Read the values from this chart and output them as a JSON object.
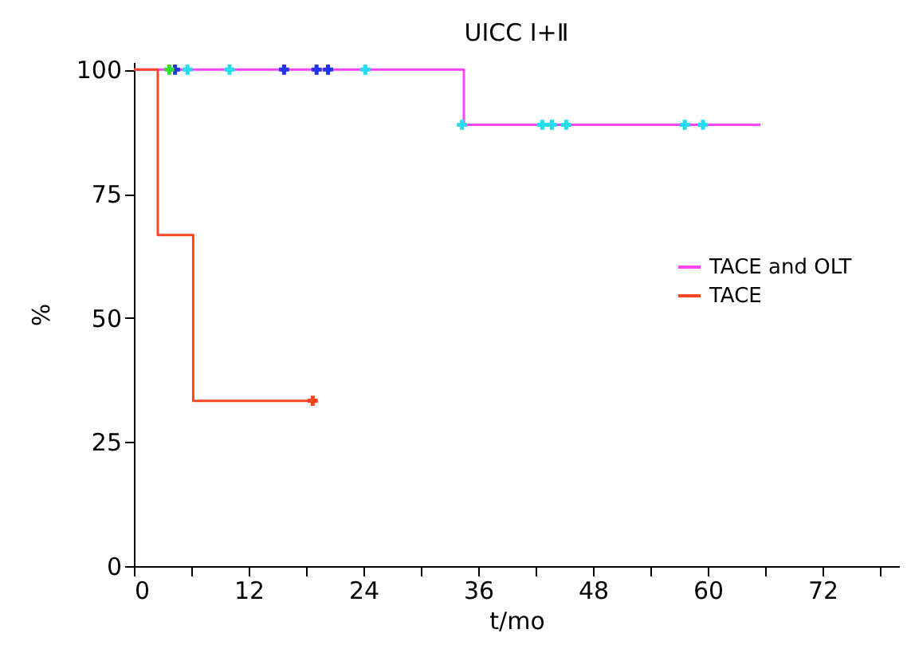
{
  "chart_data": {
    "type": "step",
    "title": "UICC Ⅰ+Ⅱ",
    "xlabel": "t/mo",
    "ylabel": "%",
    "xlim": [
      0,
      80
    ],
    "ylim": [
      0,
      101.5
    ],
    "xticks": [
      0,
      {
        "value": 6,
        "label": null
      },
      12,
      {
        "value": 18,
        "label": null
      },
      24,
      {
        "value": 30,
        "label": null
      },
      36,
      {
        "value": 42,
        "label": null
      },
      48,
      {
        "value": 54,
        "label": null
      },
      60,
      {
        "value": 66,
        "label": null
      },
      72,
      {
        "value": 78,
        "label": null
      }
    ],
    "yticks": [
      0,
      25,
      50,
      75,
      100
    ],
    "grid": false,
    "legend": "right",
    "series": [
      {
        "name": "TACE and OLT",
        "color": "#ff44ff",
        "x": [
          0,
          34.5,
          65.5
        ],
        "values": [
          100,
          88.9,
          88.9
        ]
      },
      {
        "name": "TACE",
        "color": "#ff4422",
        "x": [
          0,
          2.5,
          6.2,
          18.7
        ],
        "values": [
          100,
          66.7,
          33.3,
          33.3
        ]
      },
      {
        "type": "scatter",
        "marker": "cross",
        "color": "#22ddee",
        "x": [
          5.6,
          10,
          24.2,
          34.3,
          42.7,
          43.7,
          45.2,
          57.6,
          59.5
        ],
        "values": [
          100,
          100,
          100,
          88.9,
          88.9,
          88.9,
          88.9,
          88.9,
          88.9
        ]
      },
      {
        "type": "scatter",
        "marker": "cross",
        "color": "#2233ee",
        "x": [
          4.3,
          15.7,
          19.1,
          20.3
        ],
        "values": [
          100,
          100,
          100,
          100
        ]
      },
      {
        "type": "scatter",
        "marker": "cross",
        "color": "#33dd33",
        "x": [
          3.7
        ],
        "values": [
          100
        ]
      },
      {
        "type": "scatter",
        "marker": "cross",
        "color": "#ff4422",
        "x": [
          18.7
        ],
        "values": [
          33.3
        ]
      }
    ]
  }
}
